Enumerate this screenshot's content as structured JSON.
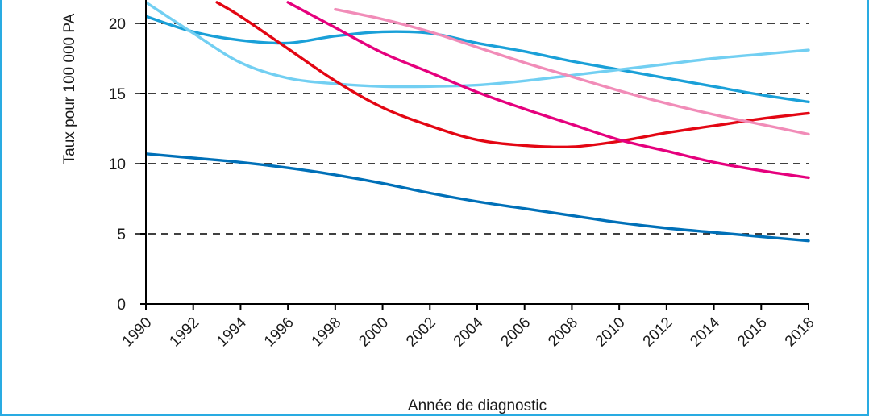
{
  "chart_data": {
    "type": "line",
    "title": "",
    "xlabel": "Année de diagnostic",
    "ylabel": "Taux pour 100 000 PA",
    "xlim": [
      1990,
      2018
    ],
    "ylim": [
      0,
      22
    ],
    "x_ticks": [
      1990,
      1992,
      1994,
      1996,
      1998,
      2000,
      2002,
      2004,
      2006,
      2008,
      2010,
      2012,
      2014,
      2016,
      2018
    ],
    "y_ticks": [
      0,
      5,
      10,
      15,
      20
    ],
    "grid": "dashed horizontal at 5, 10, 15, 20",
    "legend": "none visible",
    "series": [
      {
        "color": "#0070b8",
        "x": [
          1990,
          1992,
          1994,
          1996,
          1998,
          2000,
          2002,
          2004,
          2006,
          2008,
          2010,
          2012,
          2014,
          2016,
          2018
        ],
        "values": [
          10.7,
          10.4,
          10.1,
          9.7,
          9.2,
          8.6,
          7.9,
          7.3,
          6.8,
          6.3,
          5.8,
          5.4,
          5.1,
          4.8,
          4.5
        ]
      },
      {
        "color": "#1aa0d8",
        "x": [
          1990,
          1992,
          1994,
          1996,
          1998,
          2000,
          2002,
          2004,
          2006,
          2008,
          2010,
          2012,
          2014,
          2016,
          2018
        ],
        "values": [
          20.5,
          19.4,
          18.8,
          18.6,
          19.1,
          19.4,
          19.3,
          18.6,
          18.0,
          17.3,
          16.7,
          16.1,
          15.5,
          14.9,
          14.4
        ]
      },
      {
        "color": "#72cff2",
        "x": [
          1990,
          1992,
          1994,
          1996,
          1998,
          2000,
          2002,
          2004,
          2006,
          2008,
          2010,
          2012,
          2014,
          2016,
          2018
        ],
        "values": [
          21.5,
          19.3,
          17.2,
          16.1,
          15.7,
          15.5,
          15.5,
          15.6,
          15.9,
          16.3,
          16.7,
          17.1,
          17.5,
          17.8,
          18.1
        ]
      },
      {
        "color": "#e30613",
        "x": [
          1993,
          1994,
          1996,
          1998,
          2000,
          2002,
          2004,
          2006,
          2008,
          2010,
          2012,
          2014,
          2016,
          2018
        ],
        "values": [
          21.5,
          20.5,
          18.2,
          15.9,
          14.0,
          12.7,
          11.7,
          11.3,
          11.2,
          11.6,
          12.2,
          12.7,
          13.2,
          13.6
        ]
      },
      {
        "color": "#e5007d",
        "x": [
          1996,
          1998,
          2000,
          2002,
          2004,
          2006,
          2008,
          2010,
          2012,
          2014,
          2016,
          2018
        ],
        "values": [
          21.5,
          19.7,
          17.9,
          16.5,
          15.1,
          13.9,
          12.8,
          11.7,
          10.9,
          10.1,
          9.5,
          9.0
        ]
      },
      {
        "color": "#f18cb8",
        "x": [
          1998,
          2000,
          2002,
          2004,
          2006,
          2008,
          2010,
          2012,
          2014,
          2016,
          2018
        ],
        "values": [
          21.0,
          20.3,
          19.4,
          18.3,
          17.2,
          16.2,
          15.2,
          14.3,
          13.5,
          12.8,
          12.1
        ]
      }
    ]
  }
}
